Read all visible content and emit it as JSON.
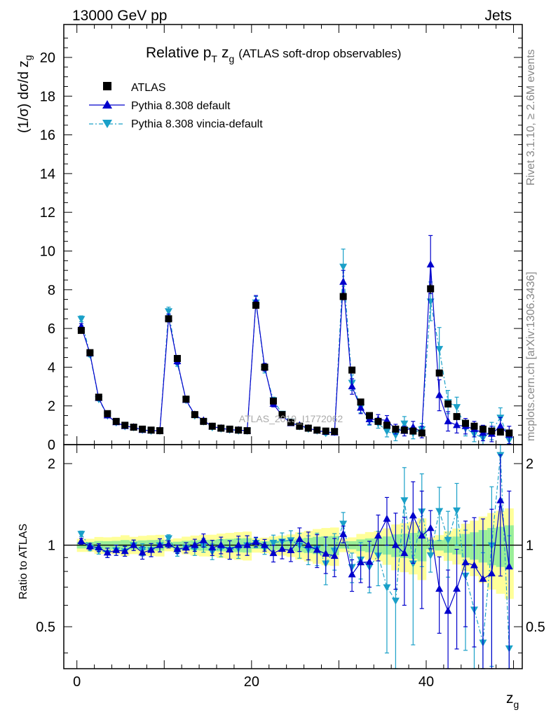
{
  "header": {
    "left": "13000 GeV pp",
    "right": "Jets"
  },
  "title": {
    "main": "Relative p",
    "sub_T": "T",
    "var": "z",
    "var_sub": "g",
    "suffix": "(ATLAS soft-drop observables)"
  },
  "side_labels": {
    "rivet": "Rivet 3.1.10, ≥ 2.6M events",
    "mcplots": "mcplots.cern.ch [arXiv:1306.3436]"
  },
  "watermark": "ATLAS_2019_I1772062",
  "axes": {
    "ylabel_top": "(1/σ) dσ/d z",
    "ylabel_top_sub": "g",
    "ylabel_bottom": "Ratio to ATLAS",
    "xlabel": "z",
    "xlabel_sub": "g",
    "top_yticks": [
      "0",
      "2",
      "4",
      "6",
      "8",
      "10",
      "12",
      "14",
      "16",
      "18",
      "20"
    ],
    "bottom_yticks": [
      "0.5",
      "1",
      "2"
    ],
    "xticks": [
      "0",
      "20",
      "40"
    ]
  },
  "legend": [
    {
      "label": "ATLAS",
      "color": "#000000",
      "marker": "square"
    },
    {
      "label": "Pythia 8.308 default",
      "color": "#0000cc",
      "marker": "triangle-up"
    },
    {
      "label": "Pythia 8.308 vincia-default",
      "color": "#1aa0c8",
      "marker": "triangle-down"
    }
  ],
  "chart_data": {
    "type": "scatter",
    "xlim": [
      -1.5,
      51
    ],
    "ylim_main": [
      0,
      21.7
    ],
    "ylim_ratio": [
      0.35,
      2.35
    ],
    "ratio_log_scale": true,
    "x": [
      0.5,
      1.5,
      2.5,
      3.5,
      4.5,
      5.5,
      6.5,
      7.5,
      8.5,
      9.5,
      10.5,
      11.5,
      12.5,
      13.5,
      14.5,
      15.5,
      16.5,
      17.5,
      18.5,
      19.5,
      20.5,
      21.5,
      22.5,
      23.5,
      24.5,
      25.5,
      26.5,
      27.5,
      28.5,
      29.5,
      30.5,
      31.5,
      32.5,
      33.5,
      34.5,
      35.5,
      36.5,
      37.5,
      38.5,
      39.5,
      40.5,
      41.5,
      42.5,
      43.5,
      44.5,
      45.5,
      46.5,
      47.5,
      48.5,
      49.5
    ],
    "series": [
      {
        "name": "ATLAS",
        "values": [
          5.9,
          4.75,
          2.45,
          1.6,
          1.2,
          1.0,
          0.9,
          0.8,
          0.75,
          0.72,
          6.5,
          4.45,
          2.35,
          1.55,
          1.2,
          0.95,
          0.85,
          0.8,
          0.75,
          0.72,
          7.2,
          4.0,
          2.25,
          1.55,
          1.15,
          0.95,
          0.85,
          0.75,
          0.7,
          0.68,
          7.65,
          3.85,
          2.2,
          1.5,
          1.2,
          1.0,
          0.8,
          0.75,
          0.7,
          0.6,
          8.05,
          3.7,
          2.1,
          1.45,
          1.1,
          0.95,
          0.8,
          0.7,
          0.65,
          0.6
        ],
        "errors": [
          0.15,
          0.12,
          0.08,
          0.05,
          0.04,
          0.04,
          0.03,
          0.03,
          0.03,
          0.03,
          0.15,
          0.12,
          0.08,
          0.06,
          0.05,
          0.04,
          0.04,
          0.04,
          0.04,
          0.04,
          0.2,
          0.12,
          0.08,
          0.06,
          0.05,
          0.05,
          0.05,
          0.05,
          0.05,
          0.05,
          0.2,
          0.12,
          0.1,
          0.08,
          0.07,
          0.07,
          0.07,
          0.07,
          0.07,
          0.07,
          0.25,
          0.15,
          0.12,
          0.1,
          0.1,
          0.1,
          0.1,
          0.1,
          0.1,
          0.1
        ]
      },
      {
        "name": "Pythia 8.308 default",
        "values": [
          6.1,
          4.7,
          2.4,
          1.5,
          1.15,
          0.95,
          0.9,
          0.75,
          0.72,
          0.72,
          6.55,
          4.3,
          2.3,
          1.55,
          1.25,
          0.93,
          0.85,
          0.77,
          0.75,
          0.72,
          7.4,
          4.0,
          2.1,
          1.5,
          1.1,
          1.0,
          0.85,
          0.72,
          0.65,
          0.62,
          8.4,
          3.0,
          1.9,
          1.3,
          1.3,
          1.25,
          0.8,
          0.7,
          0.9,
          0.65,
          9.3,
          2.55,
          1.2,
          1.0,
          0.95,
          0.8,
          0.6,
          0.55,
          0.95,
          0.5
        ],
        "errors": [
          0.15,
          0.12,
          0.08,
          0.06,
          0.05,
          0.04,
          0.04,
          0.04,
          0.04,
          0.04,
          0.2,
          0.15,
          0.1,
          0.08,
          0.07,
          0.06,
          0.06,
          0.06,
          0.06,
          0.06,
          0.3,
          0.2,
          0.15,
          0.12,
          0.1,
          0.1,
          0.1,
          0.1,
          0.1,
          0.1,
          0.6,
          0.4,
          0.3,
          0.25,
          0.25,
          0.25,
          0.25,
          0.25,
          0.3,
          0.3,
          1.5,
          0.8,
          0.5,
          0.4,
          0.4,
          0.4,
          0.4,
          0.4,
          0.45,
          0.45
        ]
      },
      {
        "name": "Pythia 8.308 vincia-default",
        "values": [
          6.5,
          4.65,
          2.35,
          1.5,
          1.15,
          0.95,
          0.9,
          0.77,
          0.72,
          0.72,
          6.9,
          4.2,
          2.3,
          1.5,
          1.2,
          0.9,
          0.83,
          0.77,
          0.73,
          0.72,
          7.35,
          3.9,
          2.3,
          1.6,
          1.2,
          0.95,
          0.82,
          0.73,
          0.6,
          0.65,
          9.2,
          3.2,
          1.95,
          1.25,
          1.1,
          0.7,
          0.5,
          1.1,
          0.6,
          0.8,
          7.4,
          4.95,
          2.2,
          1.95,
          0.85,
          0.55,
          0.35,
          0.7,
          1.4,
          0.25
        ],
        "errors": [
          0.15,
          0.12,
          0.08,
          0.06,
          0.05,
          0.04,
          0.04,
          0.04,
          0.04,
          0.04,
          0.2,
          0.15,
          0.1,
          0.08,
          0.07,
          0.06,
          0.06,
          0.06,
          0.06,
          0.06,
          0.3,
          0.2,
          0.15,
          0.12,
          0.1,
          0.1,
          0.1,
          0.1,
          0.1,
          0.1,
          0.9,
          0.4,
          0.3,
          0.25,
          0.25,
          0.3,
          0.3,
          0.35,
          0.3,
          0.3,
          1.0,
          1.1,
          0.6,
          0.5,
          0.4,
          0.4,
          0.4,
          0.45,
          0.5,
          0.4
        ]
      }
    ]
  }
}
